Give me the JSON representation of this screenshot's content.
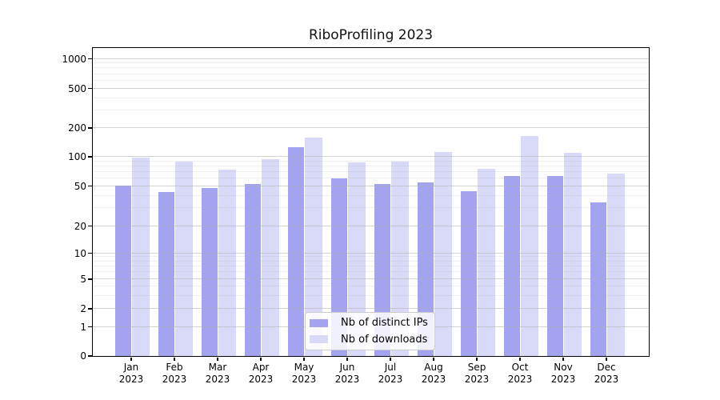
{
  "chart_data": {
    "type": "bar",
    "title": "RiboProfiling 2023",
    "categories": [
      "Jan 2023",
      "Feb 2023",
      "Mar 2023",
      "Apr 2023",
      "May 2023",
      "Jun 2023",
      "Jul 2023",
      "Aug 2023",
      "Sep 2023",
      "Oct 2023",
      "Nov 2023",
      "Dec 2023"
    ],
    "series": [
      {
        "name": "Nb of distinct IPs",
        "color": "#a3a3ef",
        "values": [
          50,
          43,
          47,
          52,
          126,
          59,
          52,
          54,
          44,
          63,
          63,
          34
        ]
      },
      {
        "name": "Nb of downloads",
        "color": "#d9d9f8",
        "values": [
          97,
          88,
          73,
          94,
          156,
          86,
          88,
          112,
          75,
          164,
          110,
          66
        ]
      }
    ],
    "yticks": [
      0,
      1,
      2,
      5,
      10,
      20,
      50,
      100,
      200,
      500,
      1000
    ],
    "yscale": "symlog",
    "ylim": [
      0,
      1300
    ],
    "xlabel": "",
    "ylabel": "",
    "grid": "horizontal major+minor, drawn over bars",
    "legend_position": "lower center inside plot",
    "colors": {
      "grid": "#b0b0b0",
      "spine": "#000000",
      "background": "#ffffff"
    }
  }
}
